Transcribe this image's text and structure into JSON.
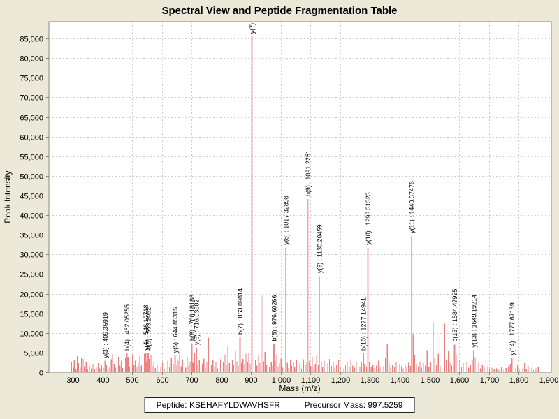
{
  "title": "Spectral View and Peptide Fragmentation Table",
  "footer": {
    "peptide_label": "Peptide:",
    "peptide_value": "KSEHAFYLDWAVHSFR",
    "precursor_label": "Precursor Mass:",
    "precursor_value": "997.5259"
  },
  "colors": {
    "background": "#ECE9D8",
    "plot_background": "#FFFFFF",
    "plot_border": "#8A8A80",
    "grid": "#CCCCCC",
    "peak_noise": "#ED7E7E",
    "peak_labeled": "#EF8585",
    "peak_tall": "#F6A9A9",
    "label_text": "#000000"
  },
  "chart_data": {
    "type": "bar",
    "title": "Spectral View and Peptide Fragmentation Table",
    "xlabel": "Mass (m/z)",
    "ylabel": "Peak Intensity",
    "xlim": [
      220,
      1910
    ],
    "ylim": [
      0,
      89300
    ],
    "x_ticks": [
      300,
      400,
      500,
      600,
      700,
      800,
      900,
      1000,
      1100,
      1200,
      1300,
      1400,
      1500,
      1600,
      1700,
      1800,
      1900
    ],
    "y_ticks": [
      0,
      5000,
      10000,
      15000,
      20000,
      25000,
      30000,
      35000,
      40000,
      45000,
      50000,
      55000,
      60000,
      65000,
      70000,
      75000,
      80000,
      85000
    ],
    "grid": "dashed",
    "legend": "none",
    "labeled_peaks": [
      {
        "ion": "y(3)",
        "mz": 409.36,
        "intensity": 2900,
        "label": "y(3) : 409.35919"
      },
      {
        "ion": "b(4)",
        "mz": 482.05,
        "intensity": 4800,
        "label": "b(4) : 482.05255"
      },
      {
        "ion": "y(4)",
        "mz": 546.11,
        "intensity": 4800,
        "label": "y(4) : 546.10718"
      },
      {
        "ion": "b(5)",
        "mz": 553.21,
        "intensity": 5000,
        "label": "b(5) : 553.2052"
      },
      {
        "ion": "y(5)",
        "mz": 644.85,
        "intensity": 4200,
        "label": "y(5) : 644.85315"
      },
      {
        "ion": "b(6)",
        "mz": 700.18,
        "intensity": 7300,
        "label": "b(6) : 700.18188"
      },
      {
        "ion": "y(6)",
        "mz": 716.04,
        "intensity": 6200,
        "label": "y(6) : 716.03882"
      },
      {
        "ion": "b(7)",
        "mz": 863.1,
        "intensity": 8900,
        "label": "b(7) : 863.09814"
      },
      {
        "ion": "y(7)",
        "mz": 902.5,
        "intensity": 85500,
        "label": "y(7) :"
      },
      {
        "ion": "b(8)",
        "mz": 976.6,
        "intensity": 7200,
        "label": "b(8) : 976.60266"
      },
      {
        "ion": "y(8)",
        "mz": 1017.33,
        "intensity": 31700,
        "label": "y(8) : 1017.32898"
      },
      {
        "ion": "b(9)",
        "mz": 1091.23,
        "intensity": 44100,
        "label": "b(9) : 1091.2251"
      },
      {
        "ion": "y(9)",
        "mz": 1130.2,
        "intensity": 24500,
        "label": "y(9) : 1130.20459"
      },
      {
        "ion": "b(10)",
        "mz": 1277.15,
        "intensity": 4800,
        "label": "b(10) : 1277.14941"
      },
      {
        "ion": "y(10)",
        "mz": 1293.31,
        "intensity": 31700,
        "label": "y(10) : 1293.31323"
      },
      {
        "ion": "y(11)",
        "mz": 1440.37,
        "intensity": 34700,
        "label": "y(11) : 1440.37476"
      },
      {
        "ion": "b(13)",
        "mz": 1584.48,
        "intensity": 7000,
        "label": "b(13) : 1584.47925"
      },
      {
        "ion": "y(13)",
        "mz": 1649.19,
        "intensity": 5600,
        "label": "y(13) : 1649.19214"
      },
      {
        "ion": "y(14)",
        "mz": 1777.67,
        "intensity": 3600,
        "label": "y(14) : 1777.67139"
      }
    ],
    "noise_peaks": [
      [
        296,
        2600
      ],
      [
        302,
        1200
      ],
      [
        305,
        3200
      ],
      [
        311,
        900
      ],
      [
        316,
        4100
      ],
      [
        320,
        2300
      ],
      [
        325,
        1200
      ],
      [
        330,
        3600
      ],
      [
        335,
        3400
      ],
      [
        339,
        1500
      ],
      [
        345,
        2500
      ],
      [
        350,
        800
      ],
      [
        356,
        1700
      ],
      [
        362,
        1000
      ],
      [
        368,
        2100
      ],
      [
        374,
        800
      ],
      [
        380,
        1400
      ],
      [
        386,
        2300
      ],
      [
        391,
        1000
      ],
      [
        397,
        1800
      ],
      [
        403,
        1200
      ],
      [
        414,
        1900
      ],
      [
        419,
        800
      ],
      [
        425,
        1400
      ],
      [
        430,
        3300
      ],
      [
        434,
        4600
      ],
      [
        439,
        2100
      ],
      [
        444,
        1200
      ],
      [
        449,
        2700
      ],
      [
        454,
        3900
      ],
      [
        459,
        1700
      ],
      [
        463,
        2900
      ],
      [
        468,
        1100
      ],
      [
        473,
        2200
      ],
      [
        478,
        3600
      ],
      [
        486,
        3900
      ],
      [
        491,
        1500
      ],
      [
        496,
        2400
      ],
      [
        501,
        4400
      ],
      [
        506,
        1800
      ],
      [
        511,
        2900
      ],
      [
        516,
        1300
      ],
      [
        521,
        2300
      ],
      [
        526,
        4100
      ],
      [
        531,
        1700
      ],
      [
        536,
        2800
      ],
      [
        541,
        4700
      ],
      [
        549,
        2500
      ],
      [
        558,
        3400
      ],
      [
        563,
        4400
      ],
      [
        568,
        1600
      ],
      [
        573,
        2700
      ],
      [
        578,
        1100
      ],
      [
        584,
        2000
      ],
      [
        590,
        3100
      ],
      [
        596,
        1400
      ],
      [
        602,
        2400
      ],
      [
        608,
        900
      ],
      [
        614,
        1900
      ],
      [
        620,
        2900
      ],
      [
        626,
        1300
      ],
      [
        632,
        3700
      ],
      [
        638,
        2100
      ],
      [
        650,
        1800
      ],
      [
        655,
        2900
      ],
      [
        660,
        5200
      ],
      [
        665,
        1500
      ],
      [
        670,
        3300
      ],
      [
        675,
        2200
      ],
      [
        680,
        1200
      ],
      [
        685,
        3900
      ],
      [
        690,
        1700
      ],
      [
        695,
        2800
      ],
      [
        705,
        2400
      ],
      [
        710,
        4900
      ],
      [
        721,
        2000
      ],
      [
        726,
        3000
      ],
      [
        731,
        1300
      ],
      [
        736,
        2200
      ],
      [
        741,
        3500
      ],
      [
        746,
        1100
      ],
      [
        751,
        2600
      ],
      [
        757,
        8800
      ],
      [
        762,
        4200
      ],
      [
        767,
        1800
      ],
      [
        772,
        3100
      ],
      [
        777,
        1400
      ],
      [
        782,
        2500
      ],
      [
        787,
        1000
      ],
      [
        792,
        2000
      ],
      [
        797,
        3300
      ],
      [
        802,
        1500
      ],
      [
        807,
        2700
      ],
      [
        812,
        4500
      ],
      [
        817,
        1900
      ],
      [
        822,
        6700
      ],
      [
        827,
        2300
      ],
      [
        832,
        1400
      ],
      [
        837,
        3200
      ],
      [
        842,
        2000
      ],
      [
        847,
        5600
      ],
      [
        852,
        2800
      ],
      [
        857,
        1600
      ],
      [
        868,
        2400
      ],
      [
        873,
        3400
      ],
      [
        878,
        1800
      ],
      [
        883,
        4600
      ],
      [
        888,
        2600
      ],
      [
        893,
        5000
      ],
      [
        897,
        2200
      ],
      [
        910,
        38500
      ],
      [
        915,
        3100
      ],
      [
        920,
        1700
      ],
      [
        925,
        4300
      ],
      [
        930,
        2400
      ],
      [
        937,
        19500
      ],
      [
        942,
        2800
      ],
      [
        947,
        5200
      ],
      [
        952,
        1900
      ],
      [
        957,
        3400
      ],
      [
        962,
        1300
      ],
      [
        968,
        2500
      ],
      [
        972,
        1600
      ],
      [
        981,
        2900
      ],
      [
        986,
        4400
      ],
      [
        991,
        1500
      ],
      [
        996,
        2300
      ],
      [
        1001,
        3500
      ],
      [
        1006,
        1200
      ],
      [
        1011,
        2700
      ],
      [
        1022,
        2400
      ],
      [
        1027,
        1100
      ],
      [
        1032,
        3100
      ],
      [
        1037,
        1700
      ],
      [
        1042,
        2600
      ],
      [
        1047,
        1300
      ],
      [
        1053,
        3000
      ],
      [
        1058,
        1500
      ],
      [
        1064,
        2200
      ],
      [
        1070,
        1000
      ],
      [
        1076,
        3300
      ],
      [
        1082,
        1800
      ],
      [
        1087,
        2500
      ],
      [
        1096,
        2800
      ],
      [
        1101,
        1600
      ],
      [
        1106,
        3900
      ],
      [
        1111,
        1300
      ],
      [
        1116,
        2100
      ],
      [
        1121,
        4200
      ],
      [
        1126,
        1800
      ],
      [
        1136,
        2500
      ],
      [
        1141,
        1400
      ],
      [
        1146,
        2900
      ],
      [
        1152,
        1100
      ],
      [
        1158,
        2200
      ],
      [
        1164,
        3400
      ],
      [
        1170,
        1600
      ],
      [
        1176,
        2600
      ],
      [
        1182,
        1200
      ],
      [
        1188,
        2000
      ],
      [
        1194,
        3100
      ],
      [
        1200,
        1500
      ],
      [
        1206,
        2400
      ],
      [
        1212,
        1000
      ],
      [
        1218,
        1800
      ],
      [
        1224,
        2800
      ],
      [
        1230,
        1400
      ],
      [
        1236,
        3300
      ],
      [
        1242,
        1700
      ],
      [
        1248,
        1200
      ],
      [
        1254,
        2500
      ],
      [
        1260,
        1900
      ],
      [
        1266,
        1300
      ],
      [
        1272,
        2700
      ],
      [
        1282,
        2100
      ],
      [
        1288,
        1500
      ],
      [
        1298,
        2600
      ],
      [
        1304,
        1400
      ],
      [
        1310,
        2000
      ],
      [
        1316,
        1100
      ],
      [
        1322,
        1700
      ],
      [
        1328,
        2900
      ],
      [
        1334,
        1300
      ],
      [
        1340,
        2200
      ],
      [
        1346,
        1600
      ],
      [
        1352,
        3700
      ],
      [
        1358,
        7300
      ],
      [
        1364,
        2400
      ],
      [
        1370,
        1200
      ],
      [
        1376,
        1900
      ],
      [
        1382,
        1400
      ],
      [
        1388,
        2600
      ],
      [
        1394,
        1100
      ],
      [
        1400,
        2100
      ],
      [
        1406,
        1500
      ],
      [
        1412,
        1000
      ],
      [
        1418,
        1800
      ],
      [
        1424,
        1300
      ],
      [
        1430,
        2400
      ],
      [
        1436,
        1600
      ],
      [
        1445,
        9700
      ],
      [
        1450,
        4400
      ],
      [
        1456,
        2100
      ],
      [
        1462,
        1500
      ],
      [
        1468,
        2800
      ],
      [
        1474,
        1200
      ],
      [
        1480,
        2300
      ],
      [
        1486,
        1700
      ],
      [
        1492,
        5600
      ],
      [
        1498,
        1400
      ],
      [
        1504,
        2600
      ],
      [
        1513,
        12800
      ],
      [
        1518,
        3600
      ],
      [
        1524,
        2000
      ],
      [
        1530,
        4700
      ],
      [
        1536,
        1500
      ],
      [
        1542,
        2900
      ],
      [
        1551,
        12400
      ],
      [
        1557,
        3200
      ],
      [
        1563,
        5300
      ],
      [
        1569,
        2400
      ],
      [
        1575,
        1700
      ],
      [
        1580,
        3800
      ],
      [
        1590,
        4500
      ],
      [
        1596,
        1900
      ],
      [
        1602,
        3000
      ],
      [
        1608,
        1300
      ],
      [
        1614,
        2300
      ],
      [
        1620,
        1600
      ],
      [
        1626,
        2700
      ],
      [
        1632,
        1200
      ],
      [
        1638,
        2000
      ],
      [
        1644,
        3300
      ],
      [
        1654,
        3800
      ],
      [
        1660,
        1400
      ],
      [
        1666,
        2400
      ],
      [
        1672,
        1000
      ],
      [
        1678,
        1800
      ],
      [
        1684,
        1300
      ],
      [
        1690,
        900
      ],
      [
        1696,
        1500
      ],
      [
        1702,
        800
      ],
      [
        1710,
        1200
      ],
      [
        1718,
        700
      ],
      [
        1726,
        1000
      ],
      [
        1734,
        600
      ],
      [
        1742,
        1300
      ],
      [
        1750,
        900
      ],
      [
        1758,
        1100
      ],
      [
        1766,
        1500
      ],
      [
        1772,
        2100
      ],
      [
        1784,
        2700
      ],
      [
        1790,
        1100
      ],
      [
        1796,
        1800
      ],
      [
        1802,
        800
      ],
      [
        1808,
        1400
      ],
      [
        1814,
        1000
      ],
      [
        1820,
        2300
      ],
      [
        1826,
        900
      ],
      [
        1832,
        1600
      ],
      [
        1838,
        700
      ],
      [
        1844,
        1200
      ],
      [
        1850,
        500
      ],
      [
        1858,
        1000
      ],
      [
        1866,
        1400
      ]
    ]
  }
}
